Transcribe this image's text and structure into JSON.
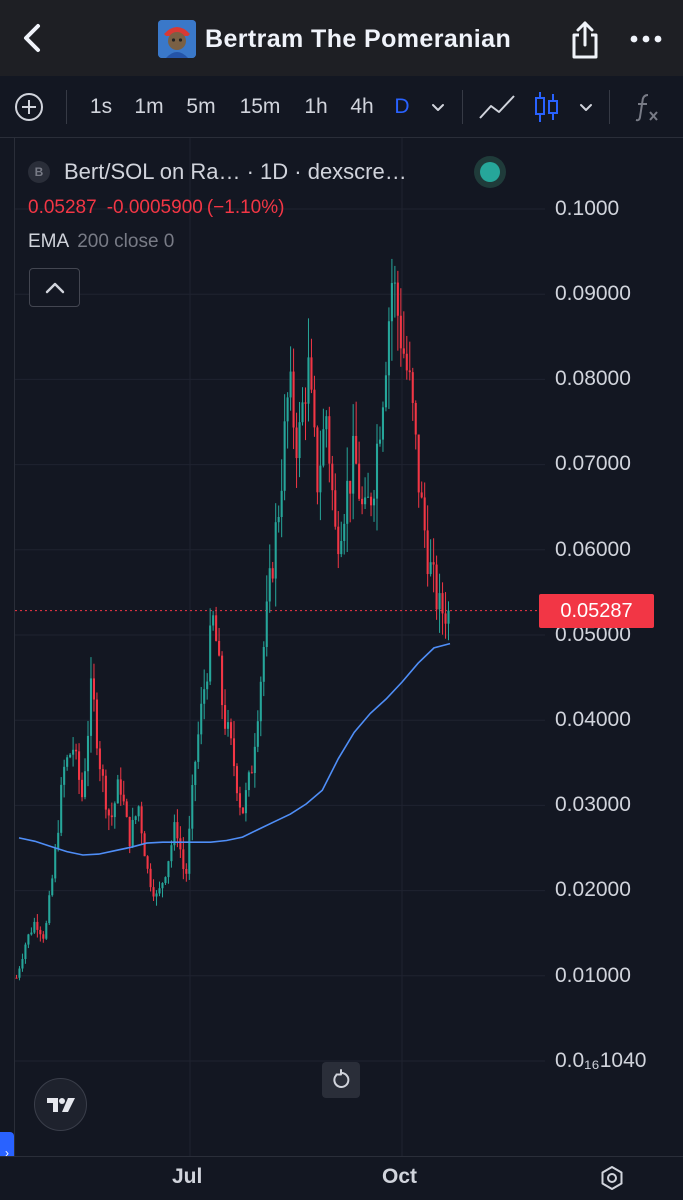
{
  "header": {
    "title": "Bertram The Pomeranian",
    "back_icon": "chevron-left-icon",
    "share_icon": "share-icon",
    "more_icon": "more-horizontal-icon"
  },
  "toolbar": {
    "add_icon": "plus-circle-icon",
    "intervals": [
      "1s",
      "1m",
      "5m",
      "15m",
      "1h",
      "4h",
      "D"
    ],
    "active_interval": "D",
    "drawing_icon": "trend-line-icon",
    "candle_icon": "candlestick-icon",
    "indicators_icon": "fx-icon"
  },
  "legend": {
    "symbol_badge": "B",
    "symbol": "Bert/SOL on Ra…  · 1D · dexscre…",
    "close": "0.05287",
    "change": "-0.0005900",
    "change_pct": "(−1.10%)",
    "ema_name": "EMA",
    "ema_args": "200 close 0"
  },
  "price_tag": "0.05287",
  "colors": {
    "up": "#26a69a",
    "down": "#f23645",
    "ema": "#4f8ef7",
    "accent": "#2962ff",
    "background": "#131722"
  },
  "chart_data": {
    "type": "candlestick",
    "y_ticks": [
      "0.1000",
      "0.09000",
      "0.08000",
      "0.07000",
      "0.06000",
      "0.05000",
      "0.04000",
      "0.03000",
      "0.02000",
      "0.01000",
      "0.0₁₆1040"
    ],
    "x_ticks": [
      "Jul",
      "Oct"
    ],
    "last_price": 0.05287,
    "ylim": [
      0,
      0.1
    ],
    "series": [
      {
        "name": "EMA 200 close 0",
        "type": "line",
        "values": [
          0.0262,
          0.0258,
          0.0252,
          0.0246,
          0.0242,
          0.0243,
          0.0247,
          0.0251,
          0.0256,
          0.0257,
          0.0257,
          0.0257,
          0.0257,
          0.0259,
          0.0263,
          0.0272,
          0.0281,
          0.029,
          0.0302,
          0.0318,
          0.0355,
          0.0386,
          0.0408,
          0.0425,
          0.0445,
          0.0467,
          0.0485,
          0.049
        ]
      }
    ],
    "approx_price_path": [
      0.0098,
      0.014,
      0.0165,
      0.0145,
      0.023,
      0.034,
      0.037,
      0.031,
      0.044,
      0.034,
      0.028,
      0.033,
      0.026,
      0.03,
      0.022,
      0.019,
      0.023,
      0.028,
      0.021,
      0.035,
      0.044,
      0.052,
      0.041,
      0.036,
      0.029,
      0.034,
      0.045,
      0.056,
      0.066,
      0.079,
      0.072,
      0.082,
      0.068,
      0.076,
      0.061,
      0.066,
      0.071,
      0.063,
      0.068,
      0.079,
      0.092,
      0.085,
      0.078,
      0.066,
      0.058,
      0.053,
      0.05287
    ]
  }
}
